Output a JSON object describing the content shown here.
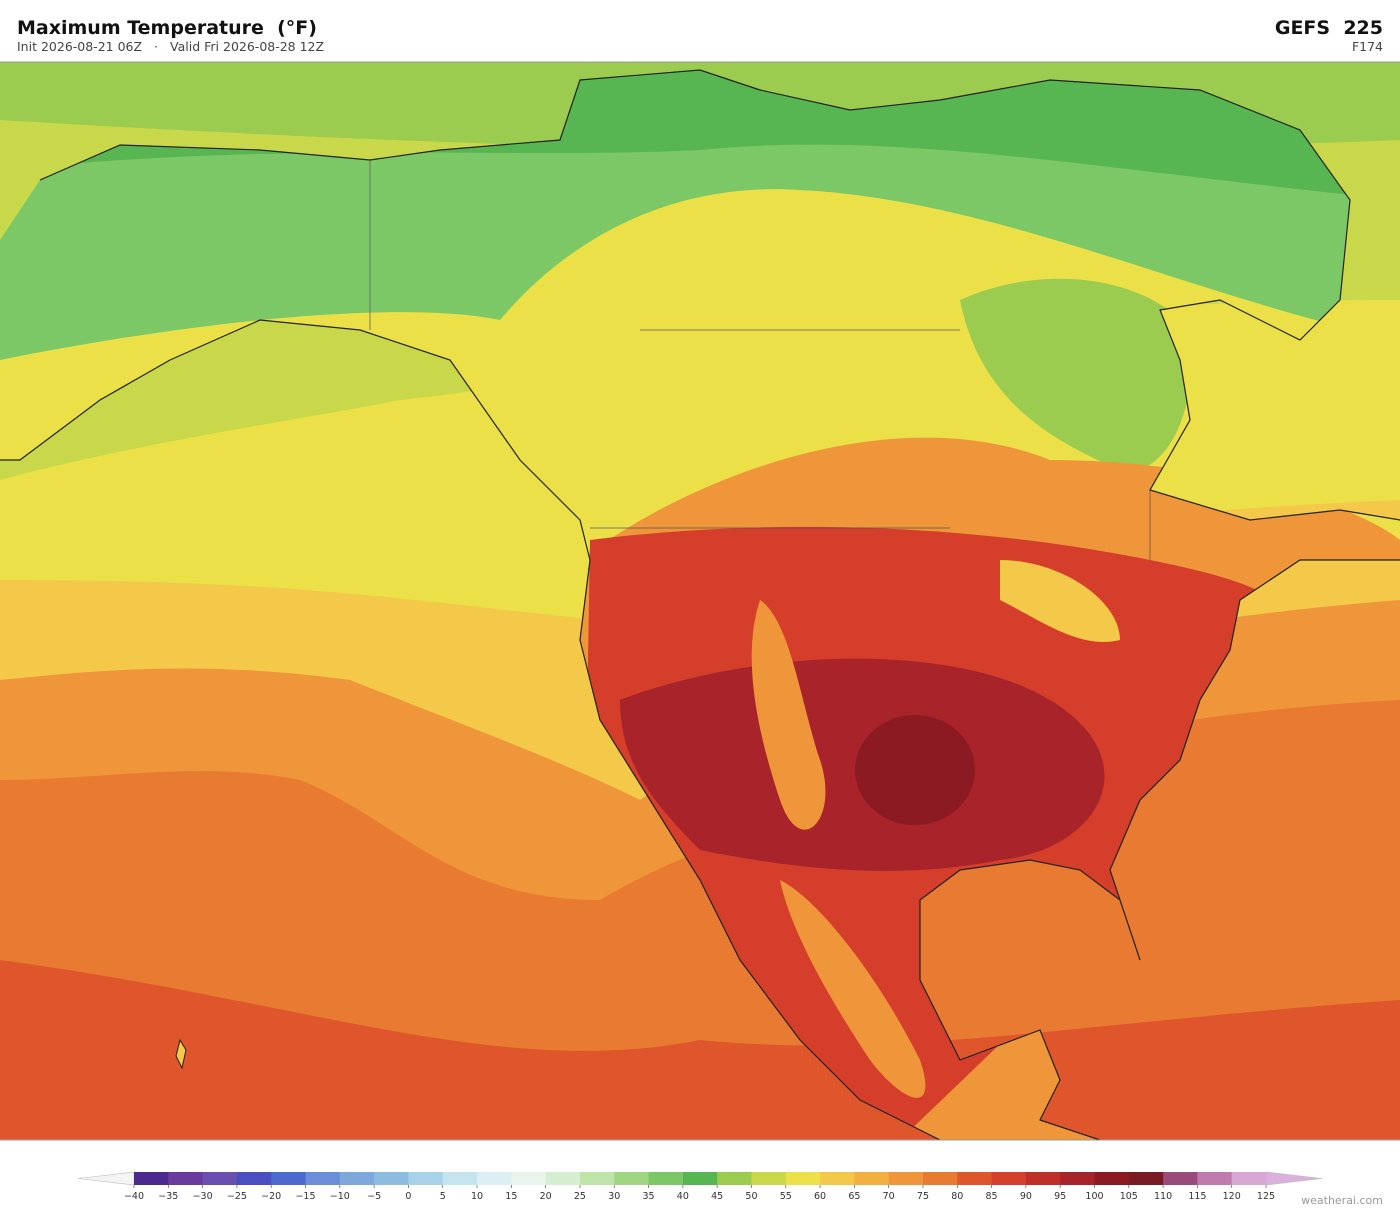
{
  "header": {
    "title": "Maximum Temperature  (°F)",
    "init": "Init 2026-08-21 06Z",
    "separator": "·",
    "valid": "Valid Fri 2026-08-28 12Z",
    "model": "GEFS  225",
    "forecast_hour": "F174"
  },
  "colorbar": {
    "ticks": [
      {
        "value": -40,
        "label": "−40"
      },
      {
        "value": -35,
        "label": "−35"
      },
      {
        "value": -30,
        "label": "−30"
      },
      {
        "value": -25,
        "label": "−25"
      },
      {
        "value": -20,
        "label": "−20"
      },
      {
        "value": -15,
        "label": "−15"
      },
      {
        "value": -10,
        "label": "−10"
      },
      {
        "value": -5,
        "label": "−5"
      },
      0,
      5,
      10,
      15,
      20,
      25,
      30,
      35,
      40,
      45,
      50,
      55,
      60,
      65,
      70,
      75,
      80,
      85,
      90,
      95,
      100,
      105,
      110,
      115,
      120,
      125
    ],
    "colors": [
      "#4a2a8f",
      "#6a3a9e",
      "#6a4fb0",
      "#4a4ec0",
      "#4a6ad0",
      "#6a8fd8",
      "#7ea8dc",
      "#8cbce0",
      "#a6d2ea",
      "#c4e4f0",
      "#ddeef4",
      "#e8f4ec",
      "#d6eed0",
      "#bfe4a8",
      "#a0d682",
      "#7cc866",
      "#58b652",
      "#9bcb4f",
      "#c8d84a",
      "#ece048",
      "#f4c848",
      "#f2b040",
      "#ef953a",
      "#e87a32",
      "#e0562c",
      "#d43e2a",
      "#c02e28",
      "#a8242a",
      "#8c1a22",
      "#7a1a22",
      "#9a4a7a",
      "#c07aae",
      "#d8a8d4"
    ],
    "extend_colors": [
      "#f4f4f4",
      "#dcb0dc"
    ]
  },
  "watermark": "weatherai.com"
}
